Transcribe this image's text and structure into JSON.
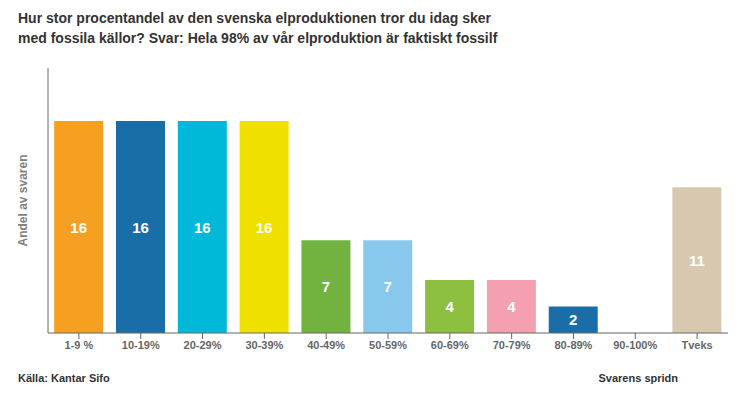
{
  "chart_data": {
    "type": "bar",
    "title": "Hur stor procentandel av den svenska elproduktionen tror du idag sker",
    "subtitle": "med fossila källor? ",
    "annotations": [
      "Svar: Hela 98% av vår elproduktion är faktiskt fossilf",
      "Källa: Kantar Sifo",
      "Svarens spridn"
    ],
    "ylabel": "Andel av svaren",
    "categories": [
      "1-9 %",
      "10-19%",
      "20-29%",
      "30-39%",
      "40-49%",
      "50-59%",
      "60-69%",
      "70-79%",
      "80-89%",
      "90-100%",
      "Tveks"
    ],
    "values": [
      16,
      16,
      16,
      16,
      7,
      7,
      4,
      4,
      2,
      0,
      11
    ],
    "colors": [
      "#F5A020",
      "#1A6EA8",
      "#00B8D8",
      "#F0E000",
      "#72B340",
      "#88C8EC",
      "#8DC040",
      "#F4A0B0",
      "#1A6EA8",
      "#00B8D8",
      "#D8C8B0"
    ],
    "ylim": [
      0,
      20
    ],
    "tick_labels": "x",
    "data_labels": true,
    "grid": false
  }
}
